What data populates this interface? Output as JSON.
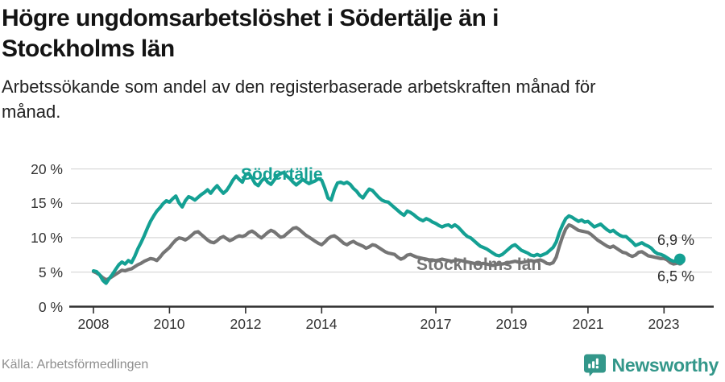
{
  "header": {
    "title_line1": "Högre ungdomsarbetslöshet i Södertälje än i",
    "title_line2": "Stockholms län",
    "subtitle": "Arbetssökande som andel av den registerbaserade arbetskraften månad för månad."
  },
  "footer": {
    "source": "Källa: Arbetsförmedlingen",
    "brand": "Newsworthy",
    "brand_icon": "newsworthy-bar-chart-bubble-icon"
  },
  "colors": {
    "sodertalje": "#14a093",
    "stockholm": "#757575",
    "brand": "#33978a",
    "grid": "#d9d9d9",
    "axis": "#2e2e2e",
    "title_text": "#141414",
    "muted_text": "#8f8f8f"
  },
  "chart_data": {
    "type": "line",
    "title": "Högre ungdomsarbetslöshet i Södertälje än i Stockholms län",
    "subtitle": "Arbetssökande som andel av den registerbaserade arbetskraften månad för månad.",
    "xlabel": "",
    "ylabel": "",
    "ylim": [
      0,
      21
    ],
    "grid": "horizontal",
    "legend_position": "inline-labels",
    "x_unit": "monthly, Jan 2008 – Jun 2023",
    "x_start_year": 2008,
    "x_tick_labels": [
      "2008",
      "2010",
      "2012",
      "2014",
      "2017",
      "2019",
      "2021",
      "2023"
    ],
    "x_tick_years": [
      2008,
      2010,
      2012,
      2014,
      2017,
      2019,
      2021,
      2023
    ],
    "y_tick_labels": [
      "20 %",
      "15 %",
      "10 %",
      "5 %",
      "0 %"
    ],
    "y_tick_values": [
      20,
      15,
      10,
      5,
      0
    ],
    "series": [
      {
        "name": "Södertälje",
        "color": "#14a093",
        "end_label": "6,9 %",
        "end_value": 6.9,
        "values": [
          5.2,
          5.1,
          4.6,
          3.8,
          3.4,
          4.1,
          4.7,
          5.4,
          6.1,
          6.5,
          6.2,
          6.7,
          6.4,
          7.3,
          8.4,
          9.3,
          10.3,
          11.4,
          12.4,
          13.2,
          13.9,
          14.4,
          15.0,
          15.4,
          15.2,
          15.7,
          16.1,
          15.1,
          14.5,
          15.4,
          16.0,
          15.8,
          15.5,
          15.9,
          16.3,
          16.6,
          17.0,
          16.5,
          17.1,
          17.6,
          17.0,
          16.5,
          16.9,
          17.6,
          18.4,
          19.0,
          18.5,
          18.1,
          19.2,
          19.4,
          18.7,
          17.9,
          17.6,
          18.3,
          18.7,
          18.1,
          17.8,
          18.4,
          19.0,
          19.4,
          19.5,
          19.0,
          18.6,
          18.1,
          17.7,
          18.1,
          18.5,
          18.2,
          17.9,
          18.1,
          18.3,
          18.6,
          18.4,
          17.2,
          15.8,
          15.5,
          17.0,
          18.0,
          18.1,
          17.9,
          18.1,
          17.8,
          17.2,
          16.8,
          16.2,
          15.8,
          16.5,
          17.1,
          16.9,
          16.4,
          15.9,
          15.5,
          15.3,
          15.2,
          14.8,
          14.4,
          14.0,
          13.6,
          13.3,
          13.9,
          13.7,
          13.4,
          13.0,
          12.7,
          12.5,
          12.8,
          12.6,
          12.3,
          12.1,
          11.8,
          11.6,
          11.8,
          11.9,
          11.6,
          11.9,
          11.6,
          11.1,
          10.6,
          10.2,
          10.0,
          9.6,
          9.2,
          8.8,
          8.6,
          8.4,
          8.1,
          7.8,
          7.5,
          7.4,
          7.6,
          8.0,
          8.4,
          8.8,
          9.0,
          8.6,
          8.2,
          8.0,
          7.8,
          7.5,
          7.4,
          7.6,
          7.4,
          7.6,
          7.8,
          8.2,
          8.6,
          9.4,
          10.8,
          11.9,
          12.8,
          13.2,
          13.0,
          12.7,
          12.4,
          12.6,
          12.3,
          12.4,
          12.0,
          11.6,
          11.8,
          12.0,
          11.6,
          11.2,
          10.9,
          11.1,
          10.7,
          10.4,
          10.2,
          10.2,
          9.8,
          9.4,
          8.9,
          9.1,
          9.3,
          9.0,
          8.8,
          8.5,
          8.0,
          7.7,
          7.6,
          7.4,
          7.1,
          6.8,
          6.6,
          6.7,
          6.9
        ]
      },
      {
        "name": "Stockholms län",
        "color": "#757575",
        "end_label": "6,5 %",
        "end_value": 6.5,
        "values": [
          5.1,
          4.9,
          4.6,
          4.2,
          3.9,
          4.1,
          4.4,
          4.7,
          5.0,
          5.3,
          5.2,
          5.4,
          5.5,
          5.8,
          6.1,
          6.3,
          6.6,
          6.8,
          7.0,
          6.9,
          6.7,
          7.2,
          7.8,
          8.2,
          8.6,
          9.2,
          9.7,
          10.0,
          9.9,
          9.7,
          10.0,
          10.4,
          10.8,
          10.9,
          10.5,
          10.1,
          9.7,
          9.4,
          9.3,
          9.6,
          10.0,
          10.2,
          9.9,
          9.6,
          9.8,
          10.1,
          10.3,
          10.2,
          10.4,
          10.8,
          11.0,
          10.7,
          10.3,
          10.0,
          10.4,
          10.8,
          11.1,
          10.9,
          10.5,
          10.1,
          10.2,
          10.6,
          11.0,
          11.4,
          11.5,
          11.2,
          10.8,
          10.4,
          10.1,
          9.8,
          9.5,
          9.2,
          9.0,
          9.4,
          9.9,
          10.2,
          10.3,
          10.0,
          9.6,
          9.2,
          9.0,
          9.3,
          9.5,
          9.2,
          9.0,
          8.8,
          8.5,
          8.7,
          9.0,
          8.9,
          8.6,
          8.3,
          8.0,
          7.8,
          7.7,
          7.6,
          7.2,
          6.9,
          7.1,
          7.5,
          7.6,
          7.4,
          7.2,
          7.1,
          7.0,
          6.9,
          6.8,
          6.8,
          6.7,
          6.8,
          6.9,
          6.8,
          6.7,
          6.6,
          6.7,
          6.8,
          6.7,
          6.6,
          6.5,
          6.4,
          6.3,
          6.2,
          6.2,
          6.3,
          6.2,
          6.1,
          6.0,
          6.1,
          6.2,
          6.2,
          6.3,
          6.4,
          6.5,
          6.6,
          6.5,
          6.4,
          6.5,
          6.6,
          6.7,
          6.6,
          6.7,
          6.8,
          6.6,
          6.3,
          6.2,
          6.4,
          7.2,
          8.8,
          10.2,
          11.3,
          11.9,
          11.7,
          11.4,
          11.1,
          11.0,
          10.9,
          10.8,
          10.5,
          10.1,
          9.7,
          9.4,
          9.1,
          8.8,
          8.6,
          8.8,
          8.5,
          8.2,
          7.9,
          7.8,
          7.5,
          7.3,
          7.5,
          7.9,
          8.0,
          7.7,
          7.4,
          7.3,
          7.2,
          7.1,
          7.0,
          7.0,
          6.8,
          6.4,
          6.2,
          6.3,
          6.5
        ]
      }
    ]
  }
}
